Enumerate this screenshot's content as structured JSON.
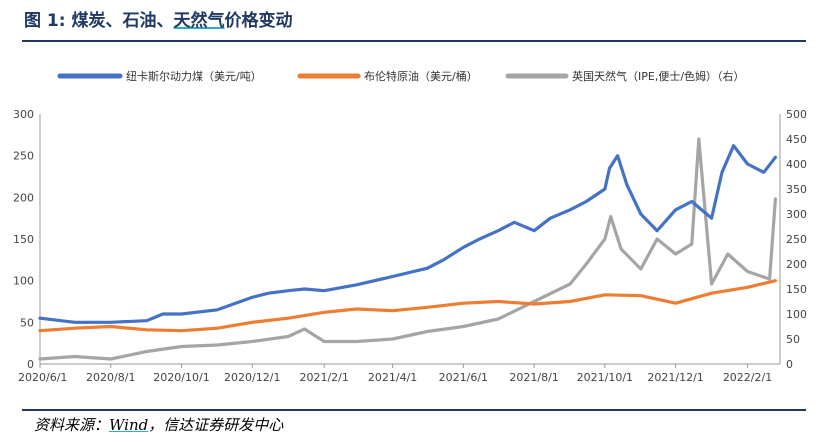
{
  "title": {
    "prefix": "图 1: 煤炭、石油、",
    "highlight": "天然气",
    "suffix": "价格变动"
  },
  "source": {
    "prefix": "资料来源：",
    "wind": "Wind",
    "suffix": "，信达证券研发中心"
  },
  "colors": {
    "coal": "#4472c4",
    "oil": "#ed7d31",
    "gas": "#a5a5a5",
    "accent": "#2ab0c5",
    "rule": "#1f3864"
  },
  "chart_data": {
    "type": "line",
    "title": "",
    "xlabel": "",
    "ylabel": "",
    "grid": false,
    "legend_position": "top",
    "x_ticks": [
      "2020/6/1",
      "2020/8/1",
      "2020/10/1",
      "2020/12/1",
      "2021/2/1",
      "2021/4/1",
      "2021/6/1",
      "2021/8/1",
      "2021/10/1",
      "2021/12/1",
      "2022/2/1"
    ],
    "y_left": {
      "min": 0,
      "max": 300,
      "ticks": [
        "0",
        "50",
        "100",
        "150",
        "200",
        "250",
        "300"
      ]
    },
    "y_right": {
      "min": 0,
      "max": 500,
      "ticks": [
        "0",
        "50",
        "100",
        "150",
        "200",
        "250",
        "300",
        "350",
        "400",
        "450",
        "500"
      ]
    },
    "series": [
      {
        "name": "纽卡斯尔动力煤（美元/吨）",
        "axis": "left",
        "x": [
          "2020-06-01",
          "2020-07-01",
          "2020-08-01",
          "2020-09-01",
          "2020-09-15",
          "2020-10-01",
          "2020-11-01",
          "2020-12-01",
          "2020-12-15",
          "2021-01-01",
          "2021-01-15",
          "2021-02-01",
          "2021-03-01",
          "2021-04-01",
          "2021-05-01",
          "2021-05-15",
          "2021-06-01",
          "2021-06-15",
          "2021-07-01",
          "2021-07-15",
          "2021-08-01",
          "2021-08-15",
          "2021-09-01",
          "2021-09-15",
          "2021-10-01",
          "2021-10-05",
          "2021-10-12",
          "2021-10-20",
          "2021-11-01",
          "2021-11-15",
          "2021-12-01",
          "2021-12-15",
          "2022-01-01",
          "2022-01-10",
          "2022-01-20",
          "2022-02-01",
          "2022-02-15",
          "2022-02-25"
        ],
        "y": [
          55,
          50,
          50,
          52,
          60,
          60,
          65,
          80,
          85,
          88,
          90,
          88,
          95,
          105,
          115,
          125,
          140,
          150,
          160,
          170,
          160,
          175,
          185,
          195,
          210,
          235,
          250,
          215,
          180,
          160,
          185,
          195,
          175,
          230,
          262,
          240,
          230,
          248
        ]
      },
      {
        "name": "布伦特原油（美元/桶）",
        "axis": "left",
        "x": [
          "2020-06-01",
          "2020-07-01",
          "2020-08-01",
          "2020-09-01",
          "2020-10-01",
          "2020-11-01",
          "2020-12-01",
          "2021-01-01",
          "2021-02-01",
          "2021-03-01",
          "2021-04-01",
          "2021-05-01",
          "2021-06-01",
          "2021-07-01",
          "2021-08-01",
          "2021-09-01",
          "2021-10-01",
          "2021-11-01",
          "2021-12-01",
          "2022-01-01",
          "2022-02-01",
          "2022-02-25"
        ],
        "y": [
          40,
          43,
          45,
          41,
          40,
          43,
          50,
          55,
          62,
          66,
          64,
          68,
          73,
          75,
          72,
          75,
          83,
          82,
          73,
          85,
          92,
          100
        ]
      },
      {
        "name": "英国天然气（IPE,便士/色姆）（右）",
        "axis": "right",
        "x": [
          "2020-06-01",
          "2020-07-01",
          "2020-08-01",
          "2020-09-01",
          "2020-10-01",
          "2020-11-01",
          "2020-12-01",
          "2021-01-01",
          "2021-01-15",
          "2021-02-01",
          "2021-03-01",
          "2021-04-01",
          "2021-05-01",
          "2021-06-01",
          "2021-07-01",
          "2021-08-01",
          "2021-09-01",
          "2021-09-15",
          "2021-10-01",
          "2021-10-06",
          "2021-10-15",
          "2021-11-01",
          "2021-11-15",
          "2021-12-01",
          "2021-12-15",
          "2021-12-21",
          "2022-01-01",
          "2022-01-15",
          "2022-02-01",
          "2022-02-20",
          "2022-02-25"
        ],
        "y": [
          10,
          15,
          10,
          25,
          35,
          38,
          45,
          55,
          70,
          45,
          45,
          50,
          65,
          75,
          90,
          125,
          160,
          200,
          250,
          295,
          230,
          190,
          250,
          220,
          240,
          450,
          160,
          220,
          185,
          170,
          330
        ]
      }
    ]
  }
}
